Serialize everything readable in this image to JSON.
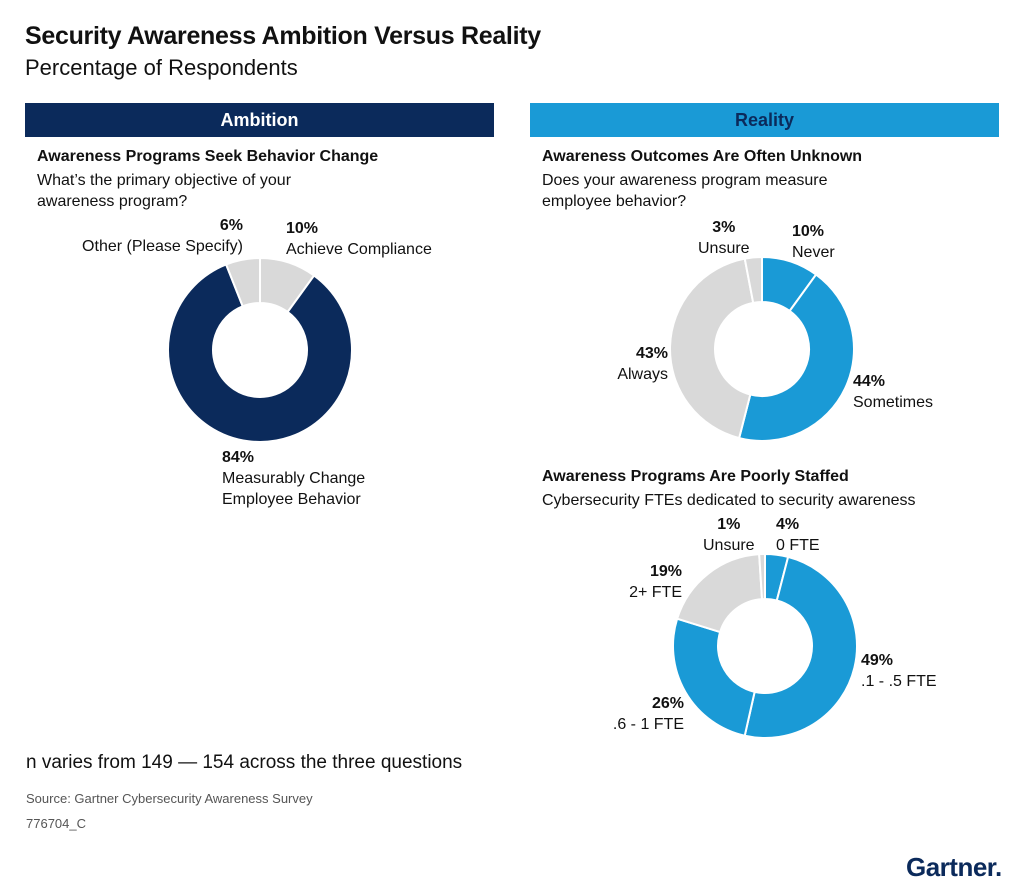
{
  "header": {
    "title": "Security Awareness Ambition Versus Reality",
    "subtitle": "Percentage of Respondents"
  },
  "sections": {
    "ambition": "Ambition",
    "reality": "Reality"
  },
  "colors": {
    "navy": "#0b2a5b",
    "blue": "#1a9ad6",
    "gray": "#d9d9d9"
  },
  "chart_data": [
    {
      "id": "objective",
      "type": "pie",
      "title": "Awareness Programs Seek Behavior Change",
      "question": "What’s the primary objective of your awareness program?",
      "slices": [
        {
          "pct": "10%",
          "label": "Achieve Compliance",
          "value": 10,
          "color": "#d9d9d9"
        },
        {
          "pct": "84%",
          "label": "Measurably Change Employee Behavior",
          "value": 84,
          "color": "#0b2a5b"
        },
        {
          "pct": "6%",
          "label": "Other (Please Specify)",
          "value": 6,
          "color": "#d9d9d9"
        }
      ]
    },
    {
      "id": "measure",
      "type": "pie",
      "title": "Awareness Outcomes Are Often Unknown",
      "question": "Does your awareness program measure employee behavior?",
      "slices": [
        {
          "pct": "10%",
          "label": "Never",
          "value": 10,
          "color": "#1a9ad6"
        },
        {
          "pct": "44%",
          "label": "Sometimes",
          "value": 44,
          "color": "#1a9ad6"
        },
        {
          "pct": "43%",
          "label": "Always",
          "value": 43,
          "color": "#d9d9d9"
        },
        {
          "pct": "3%",
          "label": "Unsure",
          "value": 3,
          "color": "#d9d9d9"
        }
      ]
    },
    {
      "id": "staffing",
      "type": "pie",
      "title": "Awareness Programs Are Poorly Staffed",
      "question": "Cybersecurity FTEs dedicated to security awareness",
      "slices": [
        {
          "pct": "4%",
          "label": "0 FTE",
          "value": 4,
          "color": "#1a9ad6"
        },
        {
          "pct": "49%",
          "label": ".1 - .5 FTE",
          "value": 49,
          "color": "#1a9ad6"
        },
        {
          "pct": "26%",
          "label": ".6 - 1 FTE",
          "value": 26,
          "color": "#1a9ad6"
        },
        {
          "pct": "19%",
          "label": "2+ FTE",
          "value": 19,
          "color": "#d9d9d9"
        },
        {
          "pct": "1%",
          "label": "Unsure",
          "value": 1,
          "color": "#d9d9d9"
        }
      ]
    }
  ],
  "footer": {
    "note": "n varies from 149 — 154 across the three questions",
    "source": "Source: Gartner Cybersecurity Awareness Survey",
    "code": "776704_C",
    "logo": "Gartner."
  }
}
